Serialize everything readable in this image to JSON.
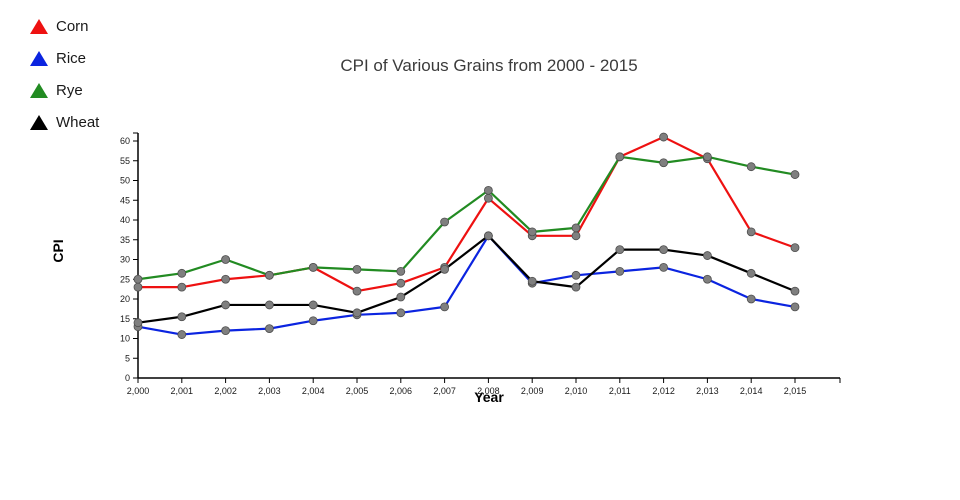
{
  "title": "CPI of Various Grains from 2000 - 2015",
  "legend": {
    "items": [
      {
        "label": "Corn",
        "color": "#ee1111"
      },
      {
        "label": "Rice",
        "color": "#0b24e0"
      },
      {
        "label": "Rye",
        "color": "#228b22"
      },
      {
        "label": "Wheat",
        "color": "#000000"
      }
    ]
  },
  "axes": {
    "ylabel": "CPI",
    "xlabel": "Year"
  },
  "chart_data": {
    "type": "line",
    "title": "CPI of Various Grains from 2000 - 2015",
    "xlabel": "Year",
    "ylabel": "CPI",
    "x": [
      2000,
      2001,
      2002,
      2003,
      2004,
      2005,
      2006,
      2007,
      2008,
      2009,
      2010,
      2011,
      2012,
      2013,
      2014,
      2015
    ],
    "x_tick_labels": [
      "2,000",
      "2,001",
      "2,002",
      "2,003",
      "2,004",
      "2,005",
      "2,006",
      "2,007",
      "2,008",
      "2,009",
      "2,010",
      "2,011",
      "2,012",
      "2,013",
      "2,014",
      "2,015"
    ],
    "y_ticks": [
      0,
      5,
      10,
      15,
      20,
      25,
      30,
      35,
      40,
      45,
      50,
      55,
      60
    ],
    "ylim": [
      0,
      62
    ],
    "grid": false,
    "legend_position": "top-left",
    "marker_color": "#7f7f7f",
    "series": [
      {
        "name": "Corn",
        "color": "#ee1111",
        "values": [
          23,
          23,
          25,
          26,
          28,
          22,
          24,
          28,
          45.5,
          36,
          36,
          56,
          61,
          55.5,
          37,
          33
        ]
      },
      {
        "name": "Rice",
        "color": "#0b24e0",
        "values": [
          13,
          11,
          12,
          12.5,
          14.5,
          16,
          16.5,
          18,
          36,
          24,
          26,
          27,
          28,
          25,
          20,
          18
        ]
      },
      {
        "name": "Rye",
        "color": "#228b22",
        "values": [
          25,
          26.5,
          30,
          26,
          28,
          27.5,
          27,
          39.5,
          47.5,
          37,
          38,
          56,
          54.5,
          56,
          53.5,
          51.5
        ]
      },
      {
        "name": "Wheat",
        "color": "#000000",
        "values": [
          14,
          15.5,
          18.5,
          18.5,
          18.5,
          16.5,
          20.5,
          27.5,
          36,
          24.5,
          23,
          32.5,
          32.5,
          31,
          26.5,
          22
        ]
      }
    ]
  }
}
